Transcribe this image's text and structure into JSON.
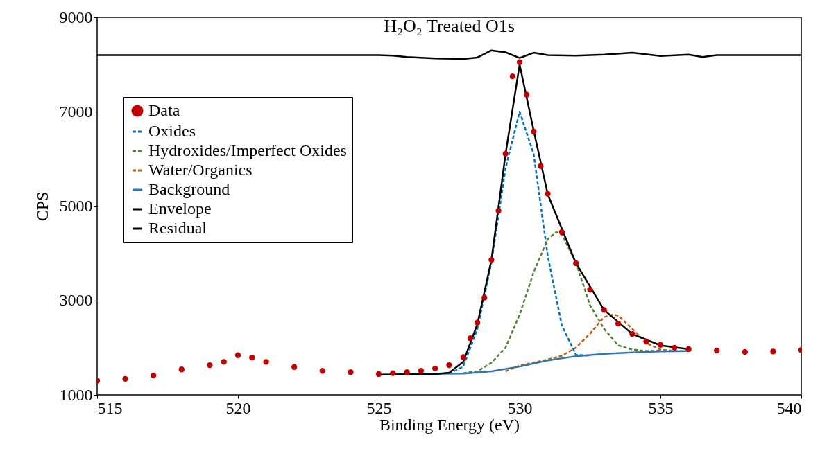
{
  "chart_data": {
    "type": "line",
    "title": "H₂O₂ Treated O1s",
    "xlabel": "Binding Energy (eV)",
    "ylabel": "CPS",
    "xlim": [
      515,
      540
    ],
    "xticks": [
      515,
      520,
      525,
      530,
      535,
      540
    ],
    "ylim": [
      1000,
      9000
    ],
    "yticks": [
      1000,
      3000,
      5000,
      7000,
      9000
    ],
    "grid": false,
    "legend": "top left",
    "series": [
      {
        "name": "Data",
        "type": "scatter",
        "marker": "circle",
        "color": "#c00000",
        "x": [
          515,
          516,
          517,
          518,
          519,
          519.5,
          520,
          520.5,
          521,
          522,
          523,
          524,
          525,
          525.5,
          526,
          526.5,
          527,
          527.5,
          528,
          528.25,
          528.5,
          528.75,
          529,
          529.25,
          529.5,
          529.75,
          530,
          530.25,
          530.5,
          530.75,
          531,
          531.5,
          532,
          532.5,
          533,
          533.5,
          534,
          534.5,
          535,
          535.5,
          536,
          537,
          538,
          539,
          540
        ],
        "values": [
          1300,
          1340,
          1410,
          1540,
          1630,
          1700,
          1840,
          1790,
          1700,
          1590,
          1510,
          1480,
          1440,
          1460,
          1480,
          1510,
          1560,
          1630,
          1800,
          2200,
          2530,
          3060,
          3860,
          4900,
          6110,
          7750,
          8050,
          7360,
          6580,
          5850,
          5260,
          4450,
          3790,
          3230,
          2800,
          2510,
          2290,
          2130,
          2060,
          2000,
          1970,
          1940,
          1910,
          1920,
          1950
        ]
      },
      {
        "name": "Oxides",
        "line_style": "dashed",
        "color": "#0070c0",
        "x": [
          527.5,
          528,
          528.5,
          529,
          529.5,
          530,
          530.5,
          531,
          531.5,
          532,
          532.5
        ],
        "values": [
          1450,
          1600,
          2400,
          3800,
          5800,
          7000,
          6100,
          3940,
          2470,
          1850,
          1830
        ]
      },
      {
        "name": "Hydroxides/Imperfect Oxides",
        "line_style": "dashed",
        "color": "#548235",
        "x": [
          528,
          528.5,
          529,
          529.5,
          530,
          530.5,
          531,
          531.3,
          531.5,
          532,
          532.5,
          533,
          533.5,
          534,
          534.5,
          535
        ],
        "values": [
          1460,
          1500,
          1680,
          2000,
          2700,
          3600,
          4300,
          4450,
          4400,
          3800,
          2900,
          2400,
          2050,
          1960,
          1930,
          1940
        ]
      },
      {
        "name": "Water/Organics",
        "line_style": "dashed",
        "color": "#c55a11",
        "x": [
          529.5,
          530,
          531,
          531.5,
          532,
          532.5,
          533,
          533.3,
          533.5,
          534,
          534.5,
          535,
          535.5,
          536
        ],
        "values": [
          1500,
          1620,
          1750,
          1830,
          2000,
          2300,
          2650,
          2700,
          2680,
          2400,
          2100,
          1960,
          1930,
          1930
        ]
      },
      {
        "name": "Background",
        "line_style": "solid",
        "color": "#2e75b6",
        "x": [
          525.5,
          528,
          529,
          530,
          531,
          532,
          533,
          534,
          535,
          536
        ],
        "values": [
          1440,
          1450,
          1500,
          1600,
          1730,
          1820,
          1870,
          1900,
          1920,
          1930
        ]
      },
      {
        "name": "Envelope",
        "line_style": "solid",
        "color": "#000000",
        "x": [
          525,
          527,
          527.5,
          528,
          528.5,
          529,
          529.5,
          530,
          530.5,
          531,
          532,
          533,
          534,
          535,
          536
        ],
        "values": [
          1430,
          1440,
          1470,
          1700,
          2500,
          3860,
          6100,
          8000,
          6600,
          5250,
          3790,
          2800,
          2290,
          2050,
          1970
        ]
      },
      {
        "name": "Residual",
        "line_style": "solid",
        "color": "#000000",
        "x": [
          515,
          525,
          525.5,
          526,
          527,
          528,
          528.5,
          529,
          529.5,
          530,
          530.5,
          531,
          532,
          533,
          534,
          535,
          536,
          536.5,
          537,
          540
        ],
        "values": [
          8200,
          8200,
          8190,
          8160,
          8130,
          8120,
          8150,
          8300,
          8260,
          8140,
          8250,
          8200,
          8190,
          8210,
          8250,
          8180,
          8210,
          8160,
          8200,
          8200
        ]
      }
    ]
  }
}
